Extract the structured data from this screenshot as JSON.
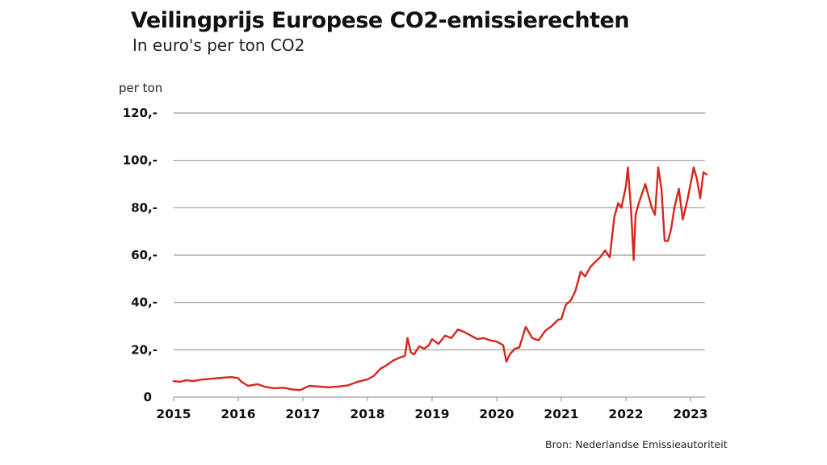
{
  "chart_data": {
    "type": "line",
    "title": "Veilingprijs Europese CO2-emissierechten",
    "subtitle": "In euro's per ton CO2",
    "ylabel": "per ton",
    "xlabel": "",
    "source": "Bron: Nederlandse Emissieautoriteit",
    "ylim": [
      0,
      120
    ],
    "xlim": [
      2015,
      2023.25
    ],
    "grid": true,
    "line_color": "#d7261e",
    "y_ticks": [
      {
        "value": 0,
        "label": "0"
      },
      {
        "value": 20,
        "label": "20,-"
      },
      {
        "value": 40,
        "label": "40,-"
      },
      {
        "value": 60,
        "label": "60,-"
      },
      {
        "value": 80,
        "label": "80,-"
      },
      {
        "value": 100,
        "label": "100,-"
      },
      {
        "value": 120,
        "label": "120,-"
      }
    ],
    "x_ticks": [
      {
        "value": 2015,
        "label": "2015"
      },
      {
        "value": 2016,
        "label": "2016"
      },
      {
        "value": 2017,
        "label": "2017"
      },
      {
        "value": 2018,
        "label": "2018"
      },
      {
        "value": 2019,
        "label": "2019"
      },
      {
        "value": 2020,
        "label": "2020"
      },
      {
        "value": 2021,
        "label": "2021"
      },
      {
        "value": 2022,
        "label": "2022"
      },
      {
        "value": 2023,
        "label": "2023"
      }
    ],
    "series": [
      {
        "name": "Veilingprijs",
        "x": [
          2015.0,
          2015.1,
          2015.2,
          2015.3,
          2015.45,
          2015.6,
          2015.75,
          2015.9,
          2016.0,
          2016.05,
          2016.15,
          2016.3,
          2016.4,
          2016.55,
          2016.7,
          2016.85,
          2016.95,
          2017.0,
          2017.1,
          2017.25,
          2017.4,
          2017.55,
          2017.7,
          2017.85,
          2018.0,
          2018.1,
          2018.2,
          2018.3,
          2018.4,
          2018.5,
          2018.58,
          2018.62,
          2018.67,
          2018.72,
          2018.8,
          2018.88,
          2018.95,
          2019.0,
          2019.1,
          2019.2,
          2019.3,
          2019.4,
          2019.5,
          2019.6,
          2019.7,
          2019.8,
          2019.9,
          2020.0,
          2020.1,
          2020.15,
          2020.2,
          2020.28,
          2020.35,
          2020.45,
          2020.55,
          2020.65,
          2020.75,
          2020.85,
          2020.95,
          2021.0,
          2021.07,
          2021.15,
          2021.22,
          2021.3,
          2021.37,
          2021.45,
          2021.52,
          2021.6,
          2021.68,
          2021.75,
          2021.82,
          2021.88,
          2021.93,
          2022.0,
          2022.03,
          2022.08,
          2022.12,
          2022.15,
          2022.2,
          2022.3,
          2022.4,
          2022.45,
          2022.5,
          2022.55,
          2022.6,
          2022.65,
          2022.7,
          2022.75,
          2022.82,
          2022.88,
          2022.95,
          2023.0,
          2023.05,
          2023.1,
          2023.15,
          2023.2,
          2023.25
        ],
        "values": [
          6.8,
          6.5,
          7.2,
          6.8,
          7.5,
          7.8,
          8.2,
          8.5,
          8.0,
          6.5,
          4.8,
          5.5,
          4.5,
          3.8,
          4.0,
          3.2,
          3.0,
          3.5,
          4.8,
          4.5,
          4.2,
          4.5,
          5.0,
          6.5,
          7.5,
          9.0,
          12.0,
          13.6,
          15.5,
          16.7,
          17.5,
          25.0,
          19.0,
          18.0,
          21.5,
          20.5,
          22.0,
          24.5,
          22.5,
          26.0,
          25.0,
          28.6,
          27.5,
          26.0,
          24.5,
          25.0,
          24.0,
          23.5,
          22.0,
          15.0,
          18.0,
          20.5,
          21.0,
          29.7,
          25.0,
          24.0,
          28.0,
          30.0,
          32.7,
          33.0,
          39.0,
          41.0,
          45.0,
          53.0,
          51.0,
          55.0,
          57.0,
          59.0,
          62.0,
          59.0,
          76.0,
          82.0,
          80.0,
          89.0,
          97.0,
          79.0,
          58.0,
          77.0,
          82.0,
          90.0,
          80.0,
          77.0,
          97.0,
          88.0,
          66.0,
          66.0,
          71.0,
          80.0,
          88.0,
          75.0,
          83.0,
          90.0,
          97.0,
          92.0,
          84.0,
          95.0,
          94.0
        ]
      }
    ]
  }
}
